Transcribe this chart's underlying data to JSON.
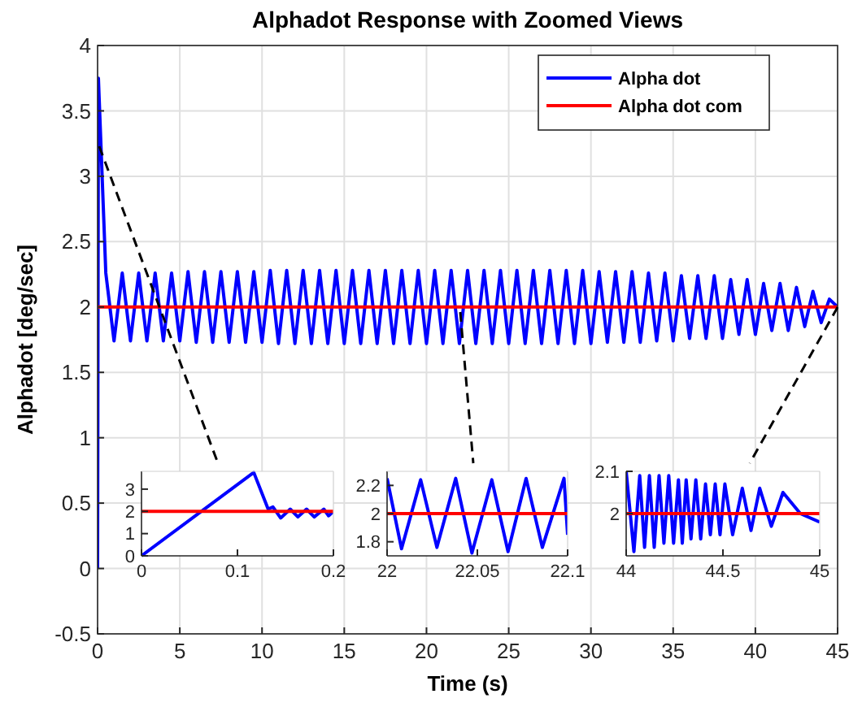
{
  "chart_data": [
    {
      "type": "line",
      "title": "Alphadot Response with Zoomed Views",
      "xlabel": "Time (s)",
      "ylabel": "Alphadot [deg/sec]",
      "xlim": [
        0,
        45
      ],
      "xticks": [
        0,
        5,
        10,
        15,
        20,
        25,
        30,
        35,
        40,
        45
      ],
      "ylim": [
        -0.5,
        4
      ],
      "yticks": [
        -0.5,
        0,
        0.5,
        1,
        1.5,
        2,
        2.5,
        3,
        3.5,
        4
      ],
      "grid": true,
      "legend": "top right",
      "series": [
        {
          "name": "Alpha dot",
          "color": "#0000ff",
          "x": [
            0,
            0.05,
            0.5,
            1,
            1.5,
            2,
            2.5,
            3,
            3.5,
            4,
            4.5,
            5,
            5.5,
            6,
            6.5,
            7,
            7.5,
            8,
            8.5,
            9,
            9.5,
            10,
            10.5,
            11,
            11.5,
            12,
            12.5,
            13,
            13.5,
            14,
            14.5,
            15,
            15.5,
            16,
            16.5,
            17,
            17.5,
            18,
            18.5,
            19,
            19.5,
            20,
            20.5,
            21,
            21.5,
            22,
            22.5,
            23,
            23.5,
            24,
            24.5,
            25,
            25.5,
            26,
            26.5,
            27,
            27.5,
            28,
            28.5,
            29,
            29.5,
            30,
            30.5,
            31,
            31.5,
            32,
            32.5,
            33,
            33.5,
            34,
            34.5,
            35,
            35.5,
            36,
            36.5,
            37,
            37.5,
            38,
            38.5,
            39,
            39.5,
            40,
            40.5,
            41,
            41.5,
            42,
            42.5,
            43,
            43.5,
            44,
            44.5,
            45
          ],
          "values": [
            0,
            3.75,
            2.26,
            1.74,
            2.26,
            1.74,
            2.26,
            1.74,
            2.26,
            1.74,
            2.26,
            1.74,
            2.27,
            1.73,
            2.27,
            1.73,
            2.27,
            1.73,
            2.27,
            1.73,
            2.27,
            1.73,
            2.28,
            1.72,
            2.28,
            1.72,
            2.28,
            1.72,
            2.28,
            1.72,
            2.28,
            1.72,
            2.28,
            1.72,
            2.28,
            1.72,
            2.28,
            1.72,
            2.28,
            1.72,
            2.28,
            1.72,
            2.28,
            1.72,
            2.28,
            1.72,
            2.28,
            1.72,
            2.28,
            1.72,
            2.28,
            1.72,
            2.28,
            1.72,
            2.28,
            1.72,
            2.28,
            1.72,
            2.28,
            1.72,
            2.28,
            1.72,
            2.27,
            1.73,
            2.27,
            1.73,
            2.27,
            1.73,
            2.26,
            1.74,
            2.26,
            1.74,
            2.24,
            1.76,
            2.24,
            1.76,
            2.24,
            1.76,
            2.21,
            1.79,
            2.21,
            1.79,
            2.18,
            1.82,
            2.18,
            1.82,
            2.15,
            1.85,
            2.12,
            1.88,
            2.06,
            2
          ]
        },
        {
          "name": "Alpha dot com",
          "color": "#ff0000",
          "x": [
            0,
            45
          ],
          "values": [
            2,
            2
          ]
        }
      ]
    },
    {
      "type": "line",
      "xlim": [
        0,
        0.2
      ],
      "xticks": [
        0,
        0.1,
        0.2
      ],
      "ylim": [
        0,
        3.8
      ],
      "yticks": [
        0,
        1,
        2,
        3
      ],
      "series": [
        {
          "color": "#0000ff",
          "x": [
            0,
            0.117,
            0.132,
            0.137,
            0.145,
            0.155,
            0.163,
            0.172,
            0.18,
            0.19,
            0.195,
            0.2
          ],
          "values": [
            0,
            3.75,
            2.1,
            2.2,
            1.7,
            2.1,
            1.75,
            2.1,
            1.75,
            2.1,
            1.8,
            2
          ]
        },
        {
          "color": "#ff0000",
          "x": [
            0,
            0.2
          ],
          "values": [
            2,
            2
          ]
        }
      ]
    },
    {
      "type": "line",
      "xlim": [
        22,
        22.1
      ],
      "xticks": [
        22,
        22.05,
        22.1
      ],
      "ylim": [
        1.7,
        2.3
      ],
      "yticks": [
        1.8,
        2,
        2.2
      ],
      "series": [
        {
          "color": "#0000ff",
          "x": [
            22,
            22.008,
            22.0186,
            22.0276,
            22.038,
            22.047,
            22.058,
            22.067,
            22.077,
            22.086,
            22.098,
            22.1
          ],
          "values": [
            2.25,
            1.75,
            2.24,
            1.76,
            2.25,
            1.72,
            2.24,
            1.73,
            2.25,
            1.76,
            2.25,
            1.85
          ]
        },
        {
          "color": "#ff0000",
          "x": [
            22,
            22.1
          ],
          "values": [
            2,
            2
          ]
        }
      ]
    },
    {
      "type": "line",
      "xlim": [
        44,
        45
      ],
      "xticks": [
        44,
        44.5,
        45
      ],
      "ylim": [
        1.9,
        2.1
      ],
      "yticks": [
        2,
        2.1
      ],
      "series": [
        {
          "color": "#0000ff",
          "x": [
            44,
            44.04,
            44.07,
            44.095,
            44.12,
            44.145,
            44.17,
            44.195,
            44.22,
            44.245,
            44.27,
            44.29,
            44.31,
            44.335,
            44.36,
            44.385,
            44.41,
            44.435,
            44.46,
            44.485,
            44.51,
            44.55,
            44.6,
            44.645,
            44.69,
            44.75,
            44.81,
            44.9,
            45
          ],
          "values": [
            2.1,
            1.91,
            2.09,
            1.92,
            2.09,
            1.92,
            2.09,
            1.93,
            2.09,
            1.93,
            2.08,
            1.93,
            2.08,
            1.94,
            2.08,
            1.94,
            2.07,
            1.95,
            2.07,
            1.95,
            2.07,
            1.95,
            2.06,
            1.96,
            2.06,
            1.97,
            2.05,
            2,
            1.98
          ]
        },
        {
          "color": "#ff0000",
          "x": [
            44,
            45
          ],
          "values": [
            2,
            2
          ]
        }
      ]
    }
  ]
}
